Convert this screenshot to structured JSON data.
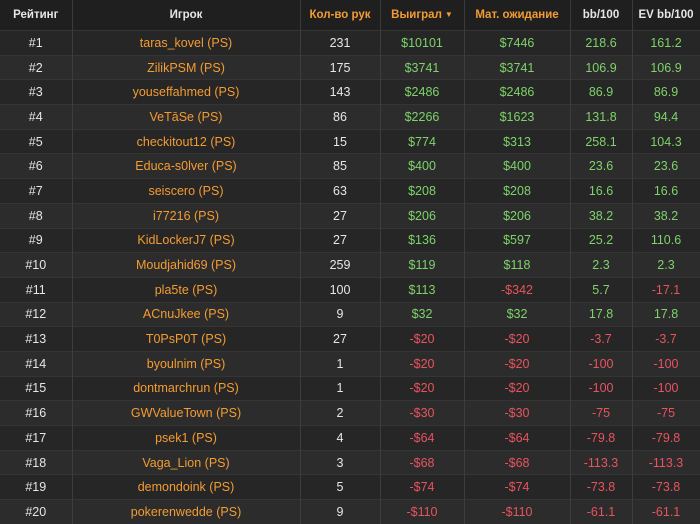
{
  "headers": {
    "rank": "Рейтинг",
    "player": "Игрок",
    "hands": "Кол-во рук",
    "won": "Выиграл",
    "won_sort_icon": "caret-down",
    "expected": "Мат. ожидание",
    "bb100": "bb/100",
    "ev_bb100": "EV bb/100"
  },
  "colors": {
    "accent": "#f39c32",
    "positive": "#7ed36a",
    "negative": "#e8535f"
  },
  "rows": [
    {
      "rank": "#1",
      "player": "taras_kovel (PS)",
      "hands": "231",
      "won": "$10101",
      "expected": "$7446",
      "bb": "218.6",
      "ev": "161.2",
      "won_neg": false,
      "exp_neg": false,
      "bb_neg": false,
      "ev_neg": false
    },
    {
      "rank": "#2",
      "player": "ZilikPSM (PS)",
      "hands": "175",
      "won": "$3741",
      "expected": "$3741",
      "bb": "106.9",
      "ev": "106.9",
      "won_neg": false,
      "exp_neg": false,
      "bb_neg": false,
      "ev_neg": false
    },
    {
      "rank": "#3",
      "player": "youseffahmed (PS)",
      "hands": "143",
      "won": "$2486",
      "expected": "$2486",
      "bb": "86.9",
      "ev": "86.9",
      "won_neg": false,
      "exp_neg": false,
      "bb_neg": false,
      "ev_neg": false
    },
    {
      "rank": "#4",
      "player": "VeTāSe (PS)",
      "hands": "86",
      "won": "$2266",
      "expected": "$1623",
      "bb": "131.8",
      "ev": "94.4",
      "won_neg": false,
      "exp_neg": false,
      "bb_neg": false,
      "ev_neg": false
    },
    {
      "rank": "#5",
      "player": "checkitout12 (PS)",
      "hands": "15",
      "won": "$774",
      "expected": "$313",
      "bb": "258.1",
      "ev": "104.3",
      "won_neg": false,
      "exp_neg": false,
      "bb_neg": false,
      "ev_neg": false
    },
    {
      "rank": "#6",
      "player": "Educa-s0lver (PS)",
      "hands": "85",
      "won": "$400",
      "expected": "$400",
      "bb": "23.6",
      "ev": "23.6",
      "won_neg": false,
      "exp_neg": false,
      "bb_neg": false,
      "ev_neg": false
    },
    {
      "rank": "#7",
      "player": "seiscero (PS)",
      "hands": "63",
      "won": "$208",
      "expected": "$208",
      "bb": "16.6",
      "ev": "16.6",
      "won_neg": false,
      "exp_neg": false,
      "bb_neg": false,
      "ev_neg": false
    },
    {
      "rank": "#8",
      "player": "i77216 (PS)",
      "hands": "27",
      "won": "$206",
      "expected": "$206",
      "bb": "38.2",
      "ev": "38.2",
      "won_neg": false,
      "exp_neg": false,
      "bb_neg": false,
      "ev_neg": false
    },
    {
      "rank": "#9",
      "player": "KidLockerJ7 (PS)",
      "hands": "27",
      "won": "$136",
      "expected": "$597",
      "bb": "25.2",
      "ev": "110.6",
      "won_neg": false,
      "exp_neg": false,
      "bb_neg": false,
      "ev_neg": false
    },
    {
      "rank": "#10",
      "player": "Moudjahid69 (PS)",
      "hands": "259",
      "won": "$119",
      "expected": "$118",
      "bb": "2.3",
      "ev": "2.3",
      "won_neg": false,
      "exp_neg": false,
      "bb_neg": false,
      "ev_neg": false
    },
    {
      "rank": "#11",
      "player": "pla5te (PS)",
      "hands": "100",
      "won": "$113",
      "expected": "-$342",
      "bb": "5.7",
      "ev": "-17.1",
      "won_neg": false,
      "exp_neg": true,
      "bb_neg": false,
      "ev_neg": true
    },
    {
      "rank": "#12",
      "player": "ACnuJkee (PS)",
      "hands": "9",
      "won": "$32",
      "expected": "$32",
      "bb": "17.8",
      "ev": "17.8",
      "won_neg": false,
      "exp_neg": false,
      "bb_neg": false,
      "ev_neg": false
    },
    {
      "rank": "#13",
      "player": "T0PsP0T (PS)",
      "hands": "27",
      "won": "-$20",
      "expected": "-$20",
      "bb": "-3.7",
      "ev": "-3.7",
      "won_neg": true,
      "exp_neg": true,
      "bb_neg": true,
      "ev_neg": true
    },
    {
      "rank": "#14",
      "player": "byoulnim (PS)",
      "hands": "1",
      "won": "-$20",
      "expected": "-$20",
      "bb": "-100",
      "ev": "-100",
      "won_neg": true,
      "exp_neg": true,
      "bb_neg": true,
      "ev_neg": true
    },
    {
      "rank": "#15",
      "player": "dontmarchrun (PS)",
      "hands": "1",
      "won": "-$20",
      "expected": "-$20",
      "bb": "-100",
      "ev": "-100",
      "won_neg": true,
      "exp_neg": true,
      "bb_neg": true,
      "ev_neg": true
    },
    {
      "rank": "#16",
      "player": "GWValueTown (PS)",
      "hands": "2",
      "won": "-$30",
      "expected": "-$30",
      "bb": "-75",
      "ev": "-75",
      "won_neg": true,
      "exp_neg": true,
      "bb_neg": true,
      "ev_neg": true
    },
    {
      "rank": "#17",
      "player": "psek1 (PS)",
      "hands": "4",
      "won": "-$64",
      "expected": "-$64",
      "bb": "-79.8",
      "ev": "-79.8",
      "won_neg": true,
      "exp_neg": true,
      "bb_neg": true,
      "ev_neg": true
    },
    {
      "rank": "#18",
      "player": "Vaga_Lion (PS)",
      "hands": "3",
      "won": "-$68",
      "expected": "-$68",
      "bb": "-113.3",
      "ev": "-113.3",
      "won_neg": true,
      "exp_neg": true,
      "bb_neg": true,
      "ev_neg": true
    },
    {
      "rank": "#19",
      "player": "demondoink (PS)",
      "hands": "5",
      "won": "-$74",
      "expected": "-$74",
      "bb": "-73.8",
      "ev": "-73.8",
      "won_neg": true,
      "exp_neg": true,
      "bb_neg": true,
      "ev_neg": true
    },
    {
      "rank": "#20",
      "player": "pokerenwedde (PS)",
      "hands": "9",
      "won": "-$110",
      "expected": "-$110",
      "bb": "-61.1",
      "ev": "-61.1",
      "won_neg": true,
      "exp_neg": true,
      "bb_neg": true,
      "ev_neg": true
    }
  ]
}
